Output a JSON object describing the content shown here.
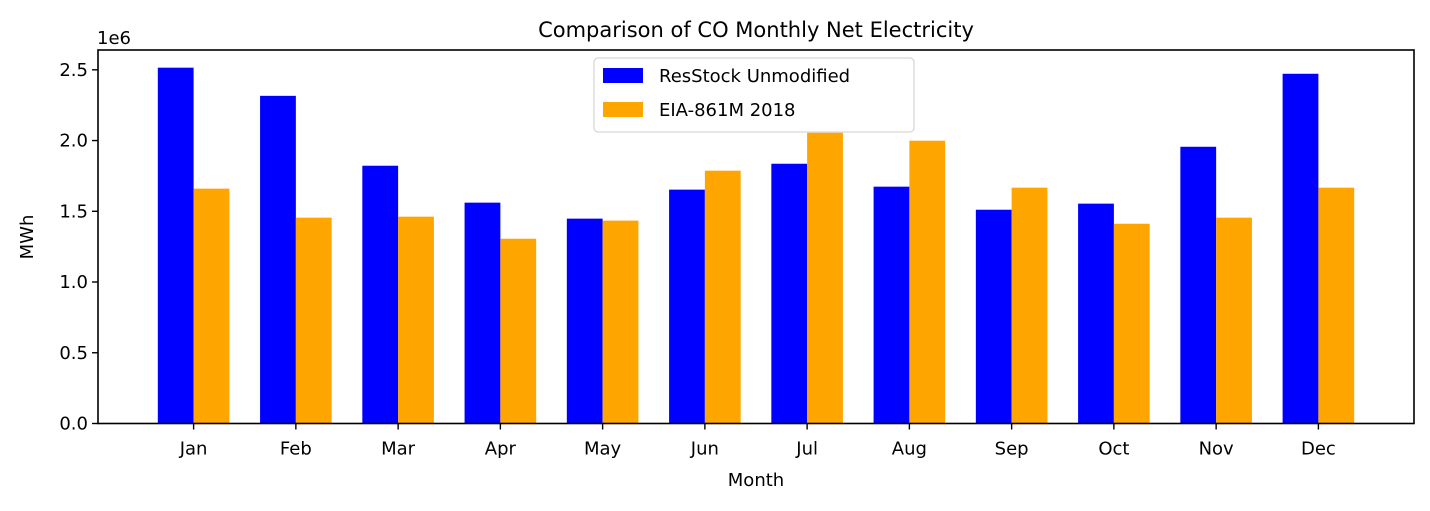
{
  "chart_data": {
    "type": "bar",
    "title": "Comparison of CO Monthly Net Electricity",
    "xlabel": "Month",
    "ylabel": "MWh",
    "y_scale_label": "1e6",
    "categories": [
      "Jan",
      "Feb",
      "Mar",
      "Apr",
      "May",
      "Jun",
      "Jul",
      "Aug",
      "Sep",
      "Oct",
      "Nov",
      "Dec"
    ],
    "series": [
      {
        "name": "ResStock Unmodified",
        "color": "#0000ff",
        "values": [
          2.515,
          2.316,
          1.822,
          1.561,
          1.448,
          1.653,
          1.836,
          1.674,
          1.511,
          1.554,
          1.956,
          2.472
        ]
      },
      {
        "name": "EIA-861M 2018",
        "color": "#ffa500",
        "values": [
          1.66,
          1.455,
          1.462,
          1.306,
          1.434,
          1.787,
          2.055,
          1.999,
          1.667,
          1.412,
          1.455,
          1.667
        ]
      }
    ],
    "value_multiplier": 1000000,
    "ylim": [
      0,
      2.64
    ],
    "yticks": [
      "0.0",
      "0.5",
      "1.0",
      "1.5",
      "2.0",
      "2.5"
    ],
    "legend_position": "top-center",
    "grid": false
  }
}
